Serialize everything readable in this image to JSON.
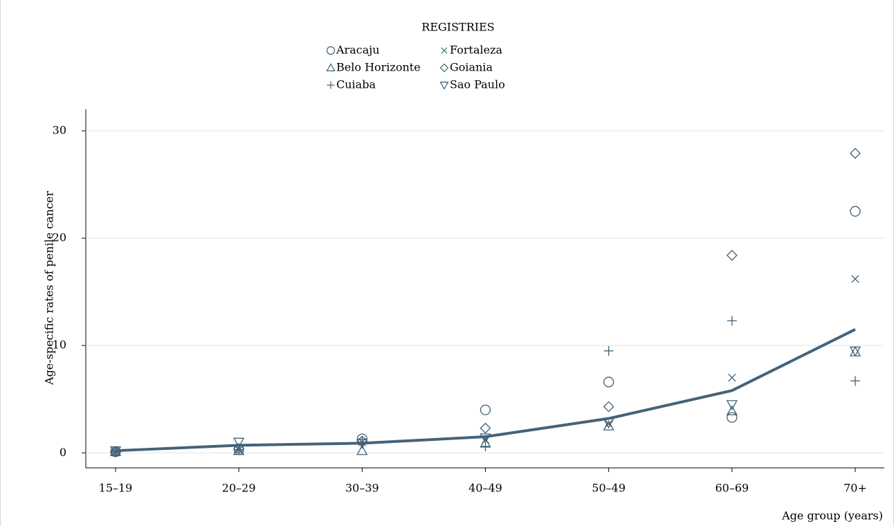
{
  "chart_data": {
    "type": "scatter",
    "legend_title": "REGISTRIES",
    "x_label": "Age group (years)",
    "y_label": "Age-specific rates of penile cancer",
    "categories": [
      "15–19",
      "20–29",
      "30–39",
      "40–49",
      "50–49",
      "60–69",
      "70+"
    ],
    "ylim": [
      -1.4,
      32
    ],
    "yticks": [
      0,
      10,
      20,
      30
    ],
    "grid": true,
    "series": [
      {
        "name": "Aracaju",
        "marker": "circle",
        "color": "#3e5f74",
        "values": [
          0.1,
          0.3,
          1.3,
          4.0,
          6.6,
          3.3,
          22.5
        ]
      },
      {
        "name": "Belo Horizonte",
        "marker": "triangle",
        "color": "#3e5f74",
        "values": [
          0.1,
          0.2,
          0.2,
          0.9,
          2.5,
          3.9,
          9.4
        ]
      },
      {
        "name": "Cuiaba",
        "marker": "plus",
        "color": "#3e5f74",
        "values": [
          0.1,
          0.3,
          1.0,
          0.6,
          9.5,
          12.3,
          6.7
        ]
      },
      {
        "name": "Fortaleza",
        "marker": "cross",
        "color": "#3e5f74",
        "values": [
          0.1,
          0.3,
          1.0,
          1.2,
          2.7,
          7.0,
          16.2
        ]
      },
      {
        "name": "Goiania",
        "marker": "diamond",
        "color": "#3e5f74",
        "values": [
          0.1,
          0.4,
          1.1,
          2.3,
          4.3,
          18.4,
          27.9
        ]
      },
      {
        "name": "Sao Paulo",
        "marker": "triangle-down",
        "color": "#3e5f74",
        "values": [
          0.2,
          1.0,
          0.9,
          1.4,
          2.8,
          4.5,
          9.5
        ]
      }
    ],
    "trend": {
      "color": "#44637a",
      "values": [
        0.2,
        0.7,
        0.9,
        1.5,
        3.2,
        5.8,
        11.5
      ]
    }
  }
}
